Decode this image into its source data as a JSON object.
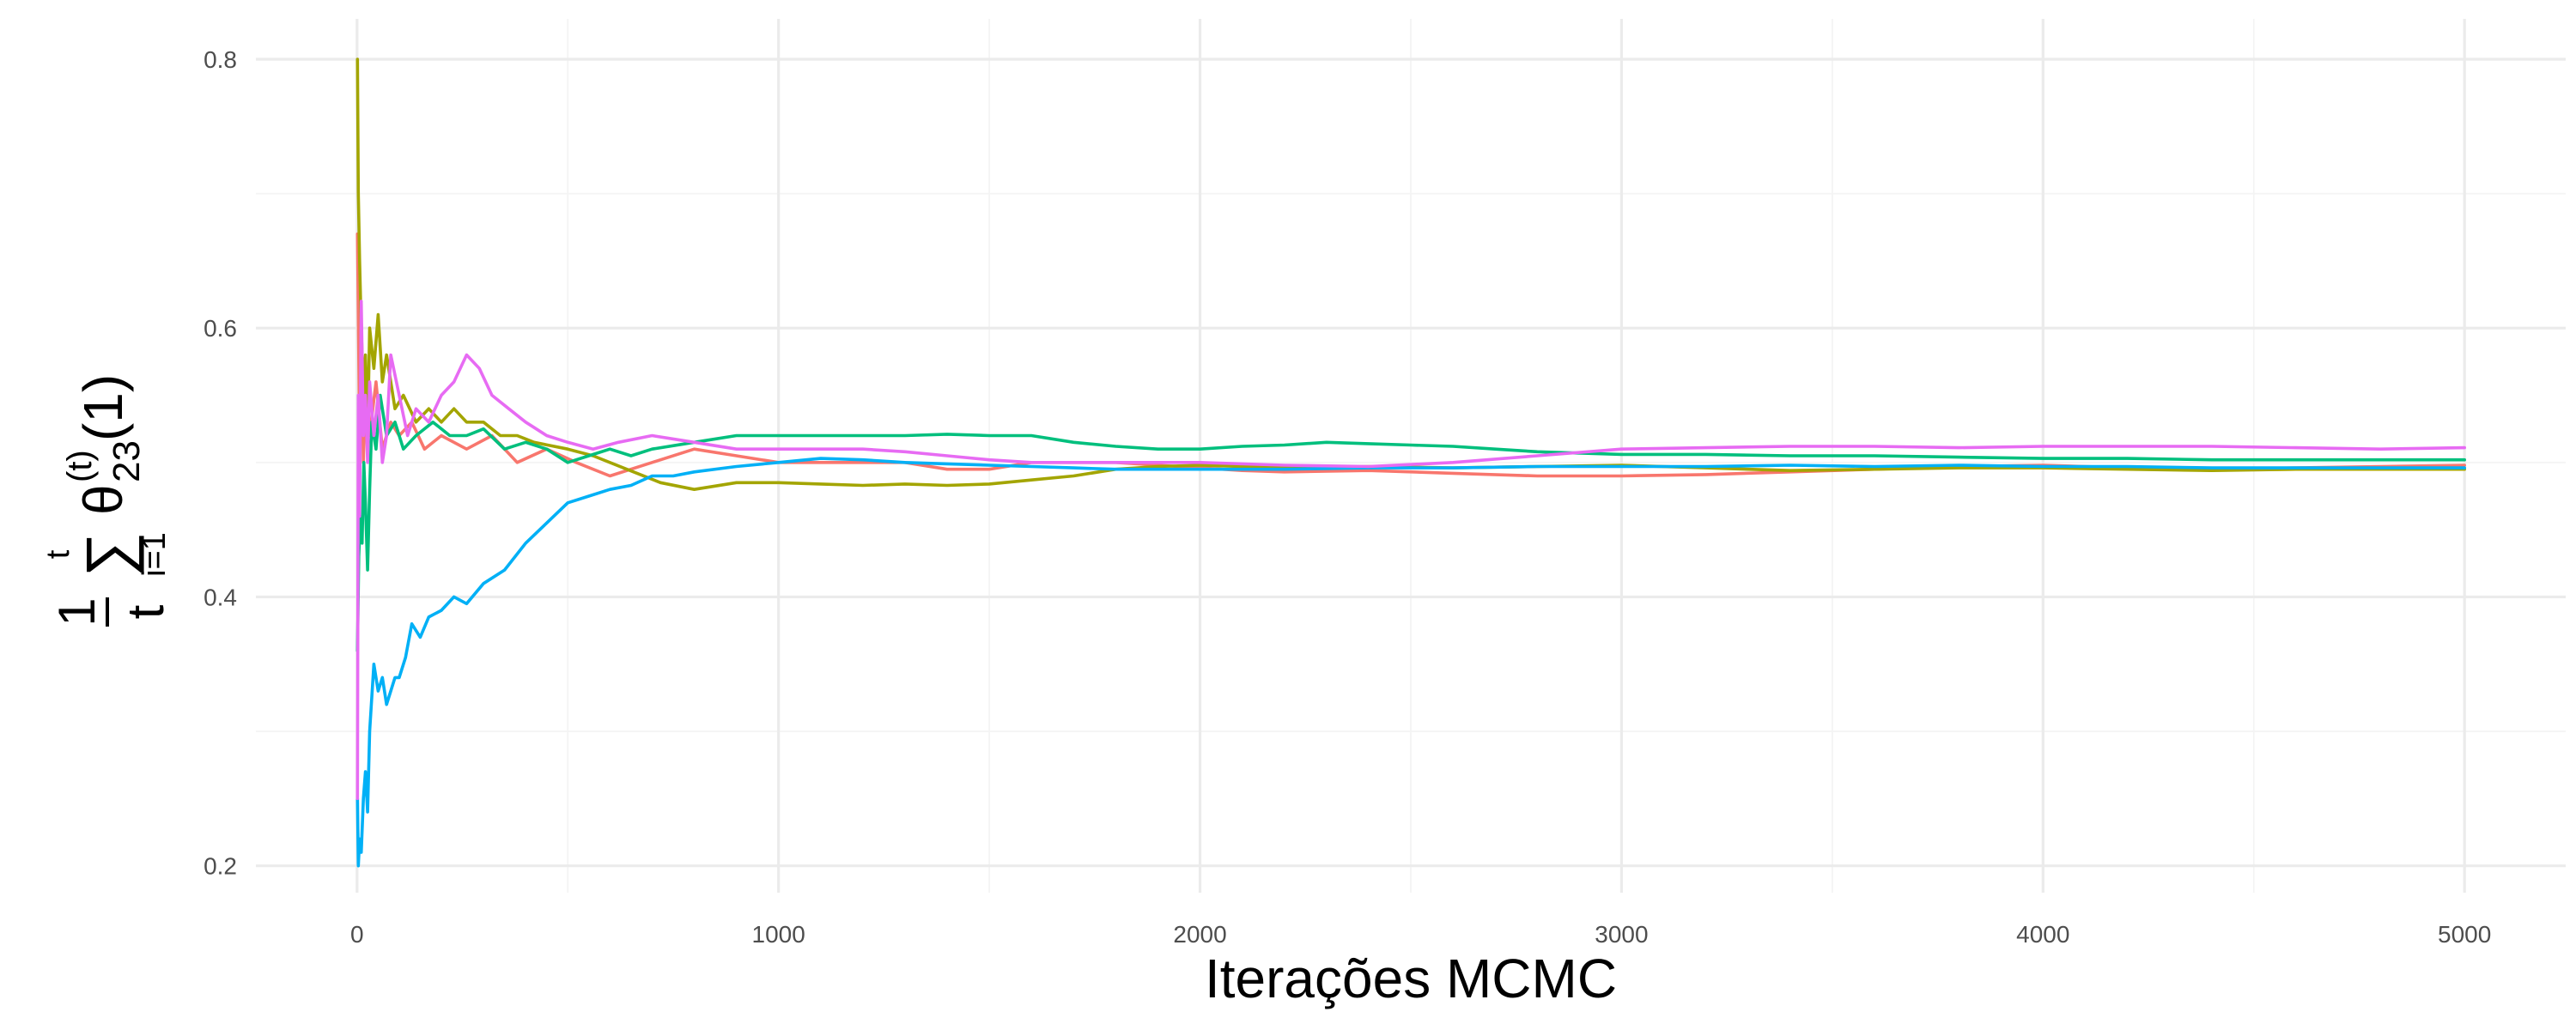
{
  "chart_data": {
    "type": "line",
    "title": "",
    "xlabel": "Iterações MCMC",
    "ylabel": {
      "fraction_numerator": "1",
      "fraction_denominator": "t",
      "sum_symbol": "∑",
      "sum_upper": "t",
      "sum_lower": "i=1",
      "theta": "θ",
      "superscript": "(t)",
      "subscript": "23",
      "argument": "(1)"
    },
    "xlim": [
      -240,
      5240
    ],
    "ylim": [
      0.18,
      0.83
    ],
    "x_ticks": [
      0,
      1000,
      2000,
      3000,
      4000,
      5000
    ],
    "x_tick_labels": [
      "0",
      "1000",
      "2000",
      "3000",
      "4000",
      "5000"
    ],
    "y_ticks": [
      0.2,
      0.4,
      0.6,
      0.8
    ],
    "y_tick_labels": [
      "0.2",
      "0.4",
      "0.6",
      "0.8"
    ],
    "grid": true,
    "legend": "none",
    "series": [
      {
        "color": "#F8766D",
        "points": [
          [
            1,
            0.67
          ],
          [
            5,
            0.55
          ],
          [
            10,
            0.6
          ],
          [
            15,
            0.5
          ],
          [
            20,
            0.57
          ],
          [
            30,
            0.52
          ],
          [
            45,
            0.56
          ],
          [
            60,
            0.51
          ],
          [
            80,
            0.53
          ],
          [
            100,
            0.52
          ],
          [
            130,
            0.53
          ],
          [
            160,
            0.51
          ],
          [
            200,
            0.52
          ],
          [
            260,
            0.51
          ],
          [
            320,
            0.52
          ],
          [
            380,
            0.5
          ],
          [
            450,
            0.51
          ],
          [
            520,
            0.5
          ],
          [
            600,
            0.49
          ],
          [
            700,
            0.5
          ],
          [
            800,
            0.51
          ],
          [
            900,
            0.505
          ],
          [
            1000,
            0.5
          ],
          [
            1100,
            0.5
          ],
          [
            1200,
            0.5
          ],
          [
            1300,
            0.5
          ],
          [
            1400,
            0.495
          ],
          [
            1500,
            0.495
          ],
          [
            1600,
            0.5
          ],
          [
            1700,
            0.5
          ],
          [
            1800,
            0.5
          ],
          [
            1900,
            0.498
          ],
          [
            2000,
            0.496
          ],
          [
            2100,
            0.494
          ],
          [
            2200,
            0.493
          ],
          [
            2400,
            0.494
          ],
          [
            2600,
            0.492
          ],
          [
            2800,
            0.49
          ],
          [
            3000,
            0.49
          ],
          [
            3200,
            0.491
          ],
          [
            3400,
            0.493
          ],
          [
            3600,
            0.495
          ],
          [
            3800,
            0.497
          ],
          [
            4000,
            0.498
          ],
          [
            4200,
            0.496
          ],
          [
            4400,
            0.495
          ],
          [
            4600,
            0.496
          ],
          [
            4800,
            0.497
          ],
          [
            5000,
            0.498
          ]
        ]
      },
      {
        "color": "#A3A500",
        "points": [
          [
            1,
            0.8
          ],
          [
            3,
            0.7
          ],
          [
            6,
            0.65
          ],
          [
            10,
            0.6
          ],
          [
            15,
            0.55
          ],
          [
            20,
            0.58
          ],
          [
            25,
            0.52
          ],
          [
            30,
            0.6
          ],
          [
            40,
            0.57
          ],
          [
            50,
            0.61
          ],
          [
            60,
            0.56
          ],
          [
            70,
            0.58
          ],
          [
            90,
            0.54
          ],
          [
            110,
            0.55
          ],
          [
            140,
            0.53
          ],
          [
            170,
            0.54
          ],
          [
            200,
            0.53
          ],
          [
            230,
            0.54
          ],
          [
            260,
            0.53
          ],
          [
            300,
            0.53
          ],
          [
            340,
            0.52
          ],
          [
            380,
            0.52
          ],
          [
            420,
            0.515
          ],
          [
            500,
            0.51
          ],
          [
            560,
            0.505
          ],
          [
            640,
            0.495
          ],
          [
            720,
            0.485
          ],
          [
            800,
            0.48
          ],
          [
            900,
            0.485
          ],
          [
            1000,
            0.485
          ],
          [
            1100,
            0.484
          ],
          [
            1200,
            0.483
          ],
          [
            1300,
            0.484
          ],
          [
            1400,
            0.483
          ],
          [
            1500,
            0.484
          ],
          [
            1600,
            0.487
          ],
          [
            1700,
            0.49
          ],
          [
            1800,
            0.495
          ],
          [
            1900,
            0.497
          ],
          [
            2000,
            0.498
          ],
          [
            2200,
            0.496
          ],
          [
            2400,
            0.497
          ],
          [
            2600,
            0.496
          ],
          [
            2800,
            0.497
          ],
          [
            3000,
            0.498
          ],
          [
            3200,
            0.496
          ],
          [
            3400,
            0.494
          ],
          [
            3600,
            0.495
          ],
          [
            3800,
            0.496
          ],
          [
            4000,
            0.496
          ],
          [
            4200,
            0.495
          ],
          [
            4400,
            0.494
          ],
          [
            4600,
            0.495
          ],
          [
            4800,
            0.495
          ],
          [
            5000,
            0.495
          ]
        ]
      },
      {
        "color": "#00BF7D",
        "points": [
          [
            1,
            0.36
          ],
          [
            4,
            0.43
          ],
          [
            8,
            0.46
          ],
          [
            12,
            0.44
          ],
          [
            16,
            0.5
          ],
          [
            20,
            0.47
          ],
          [
            25,
            0.42
          ],
          [
            30,
            0.48
          ],
          [
            35,
            0.53
          ],
          [
            45,
            0.51
          ],
          [
            55,
            0.55
          ],
          [
            70,
            0.52
          ],
          [
            90,
            0.53
          ],
          [
            110,
            0.51
          ],
          [
            140,
            0.52
          ],
          [
            180,
            0.53
          ],
          [
            220,
            0.52
          ],
          [
            260,
            0.52
          ],
          [
            300,
            0.525
          ],
          [
            350,
            0.51
          ],
          [
            400,
            0.515
          ],
          [
            450,
            0.51
          ],
          [
            500,
            0.5
          ],
          [
            550,
            0.505
          ],
          [
            600,
            0.51
          ],
          [
            650,
            0.505
          ],
          [
            700,
            0.51
          ],
          [
            800,
            0.515
          ],
          [
            900,
            0.52
          ],
          [
            1000,
            0.52
          ],
          [
            1100,
            0.52
          ],
          [
            1200,
            0.52
          ],
          [
            1300,
            0.52
          ],
          [
            1400,
            0.521
          ],
          [
            1500,
            0.52
          ],
          [
            1600,
            0.52
          ],
          [
            1700,
            0.515
          ],
          [
            1800,
            0.512
          ],
          [
            1900,
            0.51
          ],
          [
            2000,
            0.51
          ],
          [
            2100,
            0.512
          ],
          [
            2200,
            0.513
          ],
          [
            2300,
            0.515
          ],
          [
            2400,
            0.514
          ],
          [
            2500,
            0.513
          ],
          [
            2600,
            0.512
          ],
          [
            2700,
            0.51
          ],
          [
            2800,
            0.508
          ],
          [
            3000,
            0.506
          ],
          [
            3200,
            0.506
          ],
          [
            3400,
            0.505
          ],
          [
            3600,
            0.505
          ],
          [
            3800,
            0.504
          ],
          [
            4000,
            0.503
          ],
          [
            4200,
            0.503
          ],
          [
            4400,
            0.502
          ],
          [
            4600,
            0.502
          ],
          [
            4800,
            0.502
          ],
          [
            5000,
            0.502
          ]
        ]
      },
      {
        "color": "#00B0F6",
        "points": [
          [
            1,
            0.25
          ],
          [
            3,
            0.2
          ],
          [
            6,
            0.22
          ],
          [
            10,
            0.21
          ],
          [
            15,
            0.25
          ],
          [
            20,
            0.27
          ],
          [
            25,
            0.24
          ],
          [
            30,
            0.3
          ],
          [
            40,
            0.35
          ],
          [
            50,
            0.33
          ],
          [
            60,
            0.34
          ],
          [
            70,
            0.32
          ],
          [
            80,
            0.33
          ],
          [
            90,
            0.34
          ],
          [
            100,
            0.34
          ],
          [
            115,
            0.355
          ],
          [
            130,
            0.38
          ],
          [
            150,
            0.37
          ],
          [
            170,
            0.385
          ],
          [
            200,
            0.39
          ],
          [
            230,
            0.4
          ],
          [
            260,
            0.395
          ],
          [
            300,
            0.41
          ],
          [
            350,
            0.42
          ],
          [
            400,
            0.44
          ],
          [
            450,
            0.455
          ],
          [
            500,
            0.47
          ],
          [
            550,
            0.475
          ],
          [
            600,
            0.48
          ],
          [
            650,
            0.483
          ],
          [
            700,
            0.49
          ],
          [
            750,
            0.49
          ],
          [
            800,
            0.493
          ],
          [
            900,
            0.497
          ],
          [
            1000,
            0.5
          ],
          [
            1100,
            0.503
          ],
          [
            1200,
            0.502
          ],
          [
            1300,
            0.5
          ],
          [
            1400,
            0.499
          ],
          [
            1500,
            0.498
          ],
          [
            1600,
            0.497
          ],
          [
            1700,
            0.496
          ],
          [
            1800,
            0.495
          ],
          [
            1900,
            0.495
          ],
          [
            2000,
            0.495
          ],
          [
            2200,
            0.495
          ],
          [
            2400,
            0.496
          ],
          [
            2600,
            0.496
          ],
          [
            2800,
            0.497
          ],
          [
            3000,
            0.497
          ],
          [
            3200,
            0.497
          ],
          [
            3400,
            0.498
          ],
          [
            3600,
            0.497
          ],
          [
            3800,
            0.498
          ],
          [
            4000,
            0.497
          ],
          [
            4200,
            0.497
          ],
          [
            4400,
            0.496
          ],
          [
            4600,
            0.496
          ],
          [
            4800,
            0.496
          ],
          [
            5000,
            0.496
          ]
        ]
      },
      {
        "color": "#E76BF3",
        "points": [
          [
            1,
            0.25
          ],
          [
            3,
            0.55
          ],
          [
            6,
            0.46
          ],
          [
            10,
            0.62
          ],
          [
            15,
            0.52
          ],
          [
            20,
            0.55
          ],
          [
            25,
            0.5
          ],
          [
            30,
            0.56
          ],
          [
            40,
            0.52
          ],
          [
            50,
            0.55
          ],
          [
            60,
            0.5
          ],
          [
            70,
            0.52
          ],
          [
            80,
            0.58
          ],
          [
            100,
            0.55
          ],
          [
            120,
            0.52
          ],
          [
            140,
            0.54
          ],
          [
            170,
            0.53
          ],
          [
            200,
            0.55
          ],
          [
            230,
            0.56
          ],
          [
            260,
            0.58
          ],
          [
            290,
            0.57
          ],
          [
            320,
            0.55
          ],
          [
            360,
            0.54
          ],
          [
            400,
            0.53
          ],
          [
            450,
            0.52
          ],
          [
            500,
            0.515
          ],
          [
            560,
            0.51
          ],
          [
            620,
            0.515
          ],
          [
            700,
            0.52
          ],
          [
            800,
            0.515
          ],
          [
            900,
            0.51
          ],
          [
            1000,
            0.51
          ],
          [
            1100,
            0.51
          ],
          [
            1200,
            0.51
          ],
          [
            1300,
            0.508
          ],
          [
            1400,
            0.505
          ],
          [
            1500,
            0.502
          ],
          [
            1600,
            0.5
          ],
          [
            1800,
            0.5
          ],
          [
            2000,
            0.5
          ],
          [
            2200,
            0.498
          ],
          [
            2400,
            0.497
          ],
          [
            2600,
            0.5
          ],
          [
            2800,
            0.505
          ],
          [
            3000,
            0.51
          ],
          [
            3200,
            0.511
          ],
          [
            3400,
            0.512
          ],
          [
            3600,
            0.512
          ],
          [
            3800,
            0.511
          ],
          [
            4000,
            0.512
          ],
          [
            4200,
            0.512
          ],
          [
            4400,
            0.512
          ],
          [
            4600,
            0.511
          ],
          [
            4800,
            0.51
          ],
          [
            5000,
            0.511
          ]
        ]
      }
    ]
  }
}
